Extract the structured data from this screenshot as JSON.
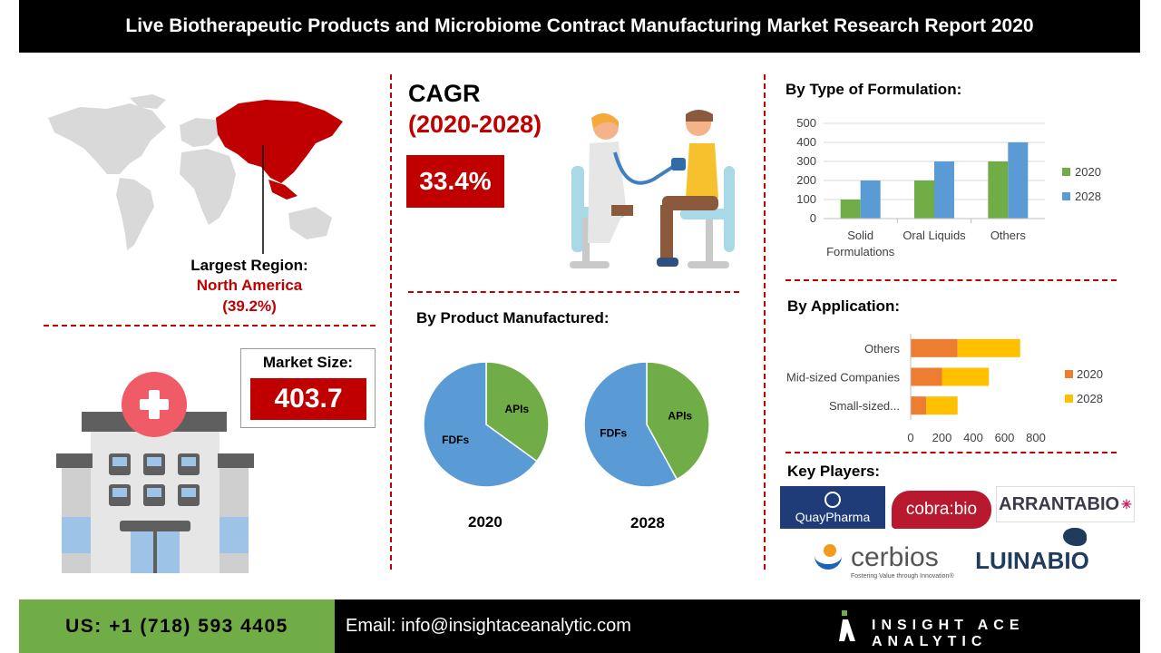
{
  "header": {
    "title": "Live Biotherapeutic Products and Microbiome Contract Manufacturing Market Research Report 2020"
  },
  "region": {
    "label": "Largest Region:",
    "name": "North America",
    "share": "(39.2%)"
  },
  "cagr": {
    "title": "CAGR",
    "years": "(2020-2028)",
    "value": "33.4%"
  },
  "market": {
    "label": "Market Size:",
    "value": "403.7"
  },
  "product": {
    "title": "By Product Manufactured:",
    "pies": [
      {
        "year": "2020",
        "slices": [
          {
            "label": "APIs",
            "value": 0.35,
            "color": "#70ad47"
          },
          {
            "label": "FDFs",
            "value": 0.65,
            "color": "#5b9bd5"
          }
        ]
      },
      {
        "year": "2028",
        "slices": [
          {
            "label": "APIs",
            "value": 0.42,
            "color": "#70ad47"
          },
          {
            "label": "FDFs",
            "value": 0.58,
            "color": "#5b9bd5"
          }
        ]
      }
    ]
  },
  "formulation": {
    "title": "By Type of Formulation:"
  },
  "application": {
    "title": "By Application:"
  },
  "players": {
    "title": "Key Players:",
    "names": [
      "QuayPharma",
      "cobra:bio",
      "ARRANTABIO",
      "cerbios",
      "Fostering Value through Innovation®",
      "LUINABIO"
    ]
  },
  "footer": {
    "phone": "US: +1 (718) 593 4405",
    "email": "Email: info@insightaceanalytic.com",
    "brand": "INSIGHT ACE ANALYTIC"
  },
  "chart_data": [
    {
      "type": "bar",
      "categories": [
        "Solid Formulations",
        "Oral Liquids",
        "Others"
      ],
      "series": [
        {
          "name": "2020",
          "values": [
            100,
            200,
            300
          ],
          "color": "#70ad47"
        },
        {
          "name": "2028",
          "values": [
            200,
            300,
            400
          ],
          "color": "#5b9bd5"
        }
      ],
      "ylim": [
        0,
        500
      ],
      "yticks": [
        "0",
        "100",
        "200",
        "300",
        "400",
        "500"
      ],
      "grid": true,
      "legend": "right"
    },
    {
      "type": "bar",
      "orientation": "horizontal",
      "categories": [
        "Small-sized...",
        "Mid-sized Companies",
        "Others"
      ],
      "series": [
        {
          "name": "2020",
          "values": [
            100,
            200,
            300
          ],
          "color": "#ed7d31"
        },
        {
          "name": "2028",
          "values": [
            200,
            300,
            400
          ],
          "color": "#ffc000"
        }
      ],
      "stacked": true,
      "xlim": [
        0,
        800
      ],
      "xticks": [
        "0",
        "200",
        "400",
        "600",
        "800"
      ],
      "legend": "right"
    }
  ]
}
